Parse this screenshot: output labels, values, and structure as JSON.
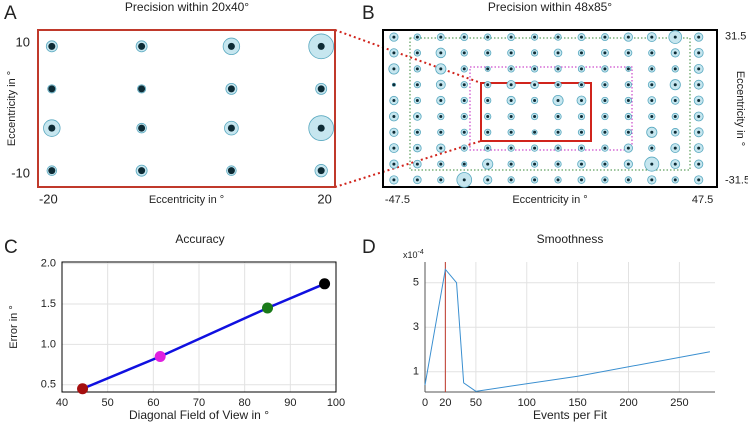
{
  "chart_data": [
    {
      "type": "dot_grid",
      "panel_label": "A",
      "title": "Precision within 20x40°",
      "x_label": "Eccentricity in °",
      "y_label": "Eccentricity in °",
      "xlim": [
        -21.5,
        21.5
      ],
      "ylim": [
        -12,
        12
      ],
      "xticks": [
        -20,
        20
      ],
      "yticks": [
        10,
        -10
      ],
      "columns": [
        -19.5,
        -6.5,
        6.5,
        19.5
      ],
      "rows": [
        9.5,
        3,
        -3,
        -9.5
      ],
      "sizes": [
        [
          0.8,
          0.8,
          1.2,
          1.8
        ],
        [
          0.6,
          0.6,
          0.8,
          0.8
        ],
        [
          1.2,
          0.7,
          1.0,
          1.8
        ],
        [
          0.7,
          0.8,
          0.7,
          0.9
        ]
      ],
      "frame_color": "#c0392b",
      "circle_color": "#c6e6ef",
      "dot_color": "#0d2b35"
    },
    {
      "type": "dot_grid",
      "panel_label": "B",
      "title": "Precision within 48x85°",
      "x_label": "Eccentricity in °",
      "y_label": "Eccentricity in °",
      "xlim": [
        -52,
        52
      ],
      "ylim": [
        -34.3,
        34.3
      ],
      "xticks": [
        -47.5,
        47.5
      ],
      "yticks": [
        31.5,
        -31.5
      ],
      "columns": [
        -48.6,
        -41.3,
        -34,
        -26.7,
        -19.4,
        -12.1,
        -4.8,
        2.5,
        9.8,
        17.1,
        24.4,
        31.7,
        39,
        46.3
      ],
      "rows": [
        31.2,
        24.3,
        17.3,
        10.4,
        3.5,
        -3.5,
        -10.4,
        -17.3,
        -24.3,
        -31.2
      ],
      "sizes": [
        [
          1.3,
          1.0,
          1.1,
          1.1,
          1.0,
          1.1,
          1.0,
          1.0,
          1.1,
          1.1,
          1.3,
          1.4,
          2.0,
          1.3
        ],
        [
          1.3,
          1.0,
          1.5,
          1.0,
          1.0,
          1.1,
          1.0,
          1.2,
          1.0,
          1.1,
          1.1,
          1.0,
          1.3,
          1.4
        ],
        [
          1.6,
          1.0,
          1.6,
          1.0,
          0.8,
          1.0,
          1.0,
          1.0,
          1.0,
          1.0,
          0.8,
          1.0,
          1.0,
          1.4
        ],
        [
          0.5,
          1.0,
          1.4,
          1.0,
          1.0,
          1.3,
          1.2,
          1.0,
          0.9,
          1.0,
          1.0,
          1.1,
          1.6,
          1.4
        ],
        [
          1.3,
          1.0,
          1.3,
          1.0,
          1.0,
          1.3,
          1.0,
          1.6,
          1.4,
          1.0,
          1.0,
          1.2,
          1.2,
          1.4
        ],
        [
          1.4,
          1.2,
          1.0,
          1.0,
          1.0,
          1.0,
          1.0,
          1.0,
          1.0,
          1.0,
          1.0,
          1.0,
          1.0,
          1.4
        ],
        [
          1.3,
          1.0,
          1.0,
          1.0,
          1.0,
          1.0,
          0.8,
          1.0,
          1.0,
          1.0,
          1.0,
          1.6,
          1.2,
          1.4
        ],
        [
          1.4,
          1.2,
          1.3,
          1.0,
          1.0,
          1.0,
          1.0,
          1.0,
          1.0,
          1.0,
          1.3,
          1.0,
          1.4,
          1.4
        ],
        [
          1.3,
          1.2,
          1.0,
          0.8,
          1.6,
          1.0,
          1.0,
          1.0,
          1.2,
          1.0,
          1.3,
          2.2,
          1.4,
          1.3
        ],
        [
          1.3,
          1.2,
          1.0,
          2.3,
          1.3,
          1.0,
          1.0,
          1.0,
          1.1,
          1.0,
          1.0,
          1.3,
          1.0,
          1.3
        ]
      ],
      "frame_color": "#000000",
      "circle_color": "#c6e6ef",
      "dot_color": "#0d2b35"
    },
    {
      "type": "line",
      "panel_label": "C",
      "title": "Accuracy",
      "x_label": "Diagonal Field of View in °",
      "y_label": "Error in °",
      "x": [
        44.5,
        61.5,
        85,
        97.5
      ],
      "y": [
        0.45,
        0.85,
        1.45,
        1.75
      ],
      "point_colors": [
        "#a50f0f",
        "#e020e0",
        "#1a7a1a",
        "#000000"
      ],
      "color": "#1010e0",
      "xlim": [
        40,
        100
      ],
      "xticks": [
        40,
        50,
        60,
        70,
        80,
        90,
        100
      ],
      "ylim": [
        0.41,
        2.02
      ],
      "yticks": [
        {
          "value": 0.5,
          "label": "0.5"
        },
        {
          "value": 1.0,
          "label": "1.0"
        },
        {
          "value": 1.5,
          "label": "1.5"
        },
        {
          "value": 2.0,
          "label": "2.0"
        }
      ],
      "grid": true
    },
    {
      "type": "line",
      "panel_label": "D",
      "title": "Smoothness",
      "x_label": "Events per Fit",
      "y_multiplier": "x10",
      "y_multiplier_exponent": "-4",
      "x": [
        0,
        20,
        31,
        38,
        50,
        150,
        280
      ],
      "y": [
        0.4,
        5.6,
        5.0,
        0.5,
        0.12,
        0.8,
        1.9
      ],
      "color": "#3a8fd0",
      "vline": 20,
      "vline_color": "#c0392b",
      "xlim": [
        0,
        285
      ],
      "xticks": [
        0,
        20,
        50,
        100,
        150,
        200,
        250
      ],
      "ylim": [
        0.09,
        5.93
      ],
      "yticks": [
        1,
        3,
        5
      ],
      "grid": true
    }
  ]
}
